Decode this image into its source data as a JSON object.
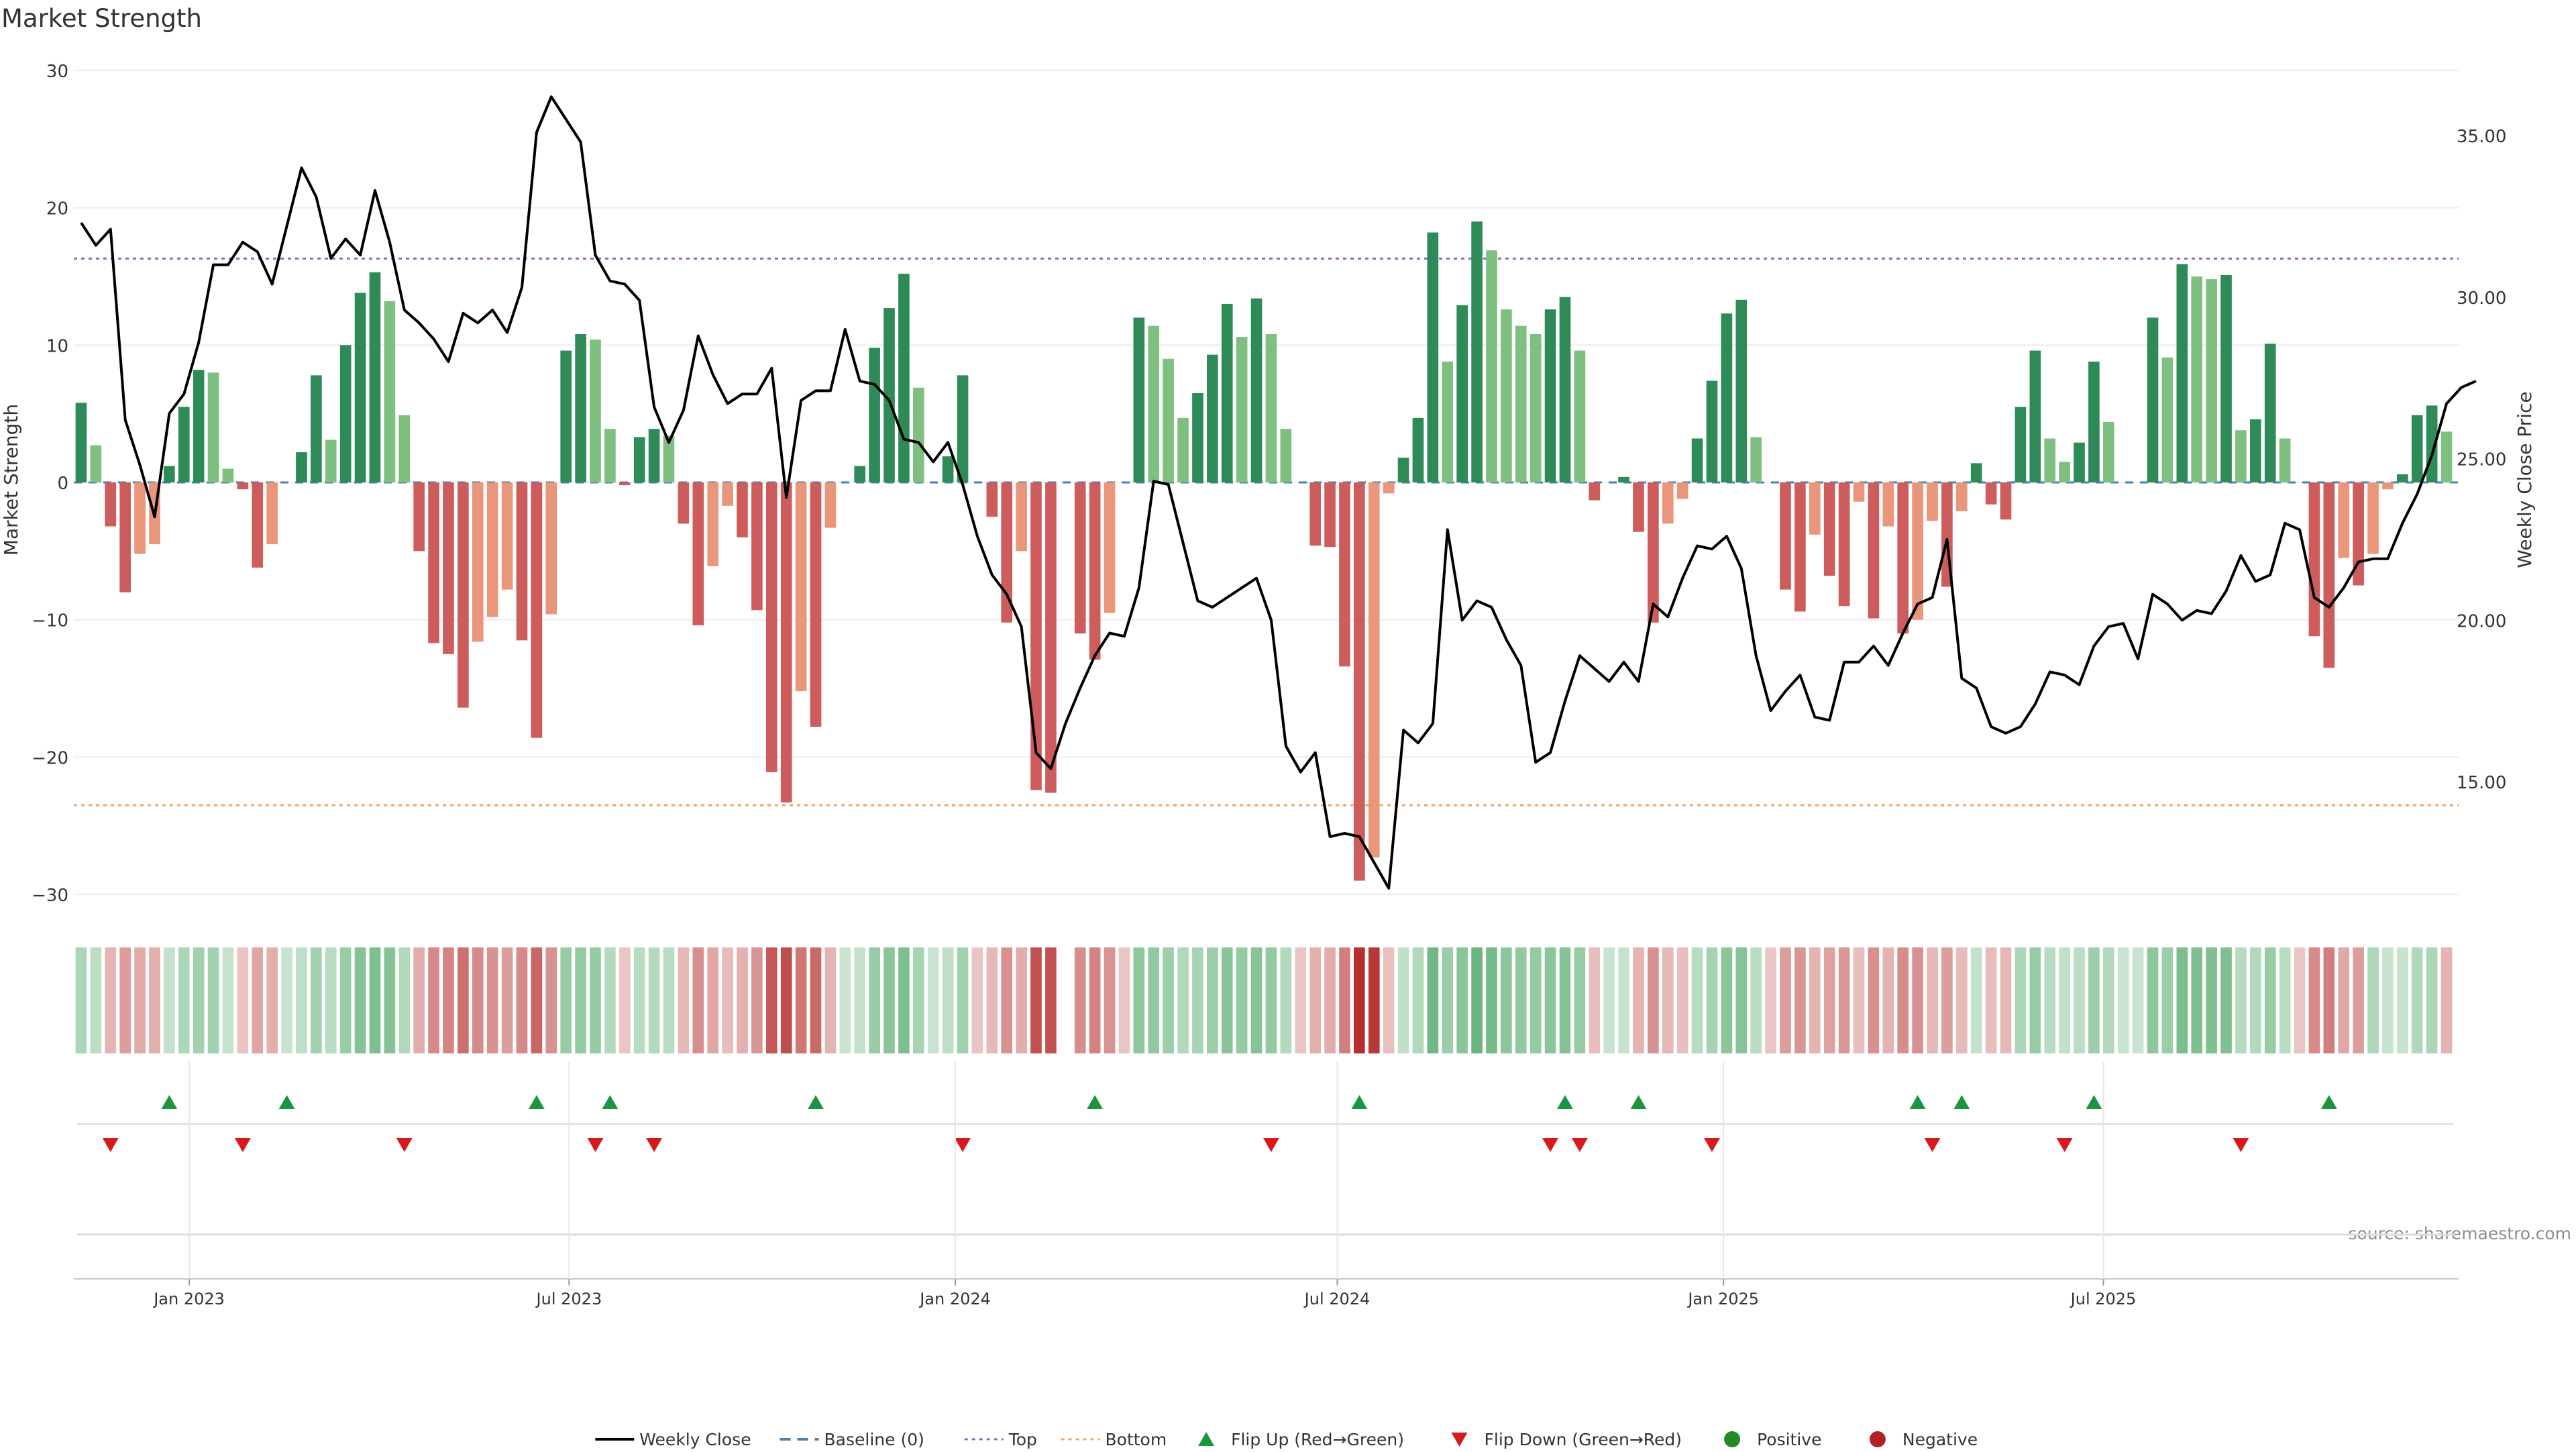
{
  "chart_data": {
    "type": "bar",
    "title": "Market Strength",
    "ylabel": "Market Strength",
    "y2label": "Weekly Close Price",
    "ylim": [
      -35,
      31
    ],
    "y2lim": [
      11.0,
      37.0
    ],
    "yticks": [
      30,
      20,
      10,
      0,
      -10,
      -20,
      -30
    ],
    "ytick_labels": [
      "30",
      "20",
      "10",
      "0",
      "−10",
      "−20",
      "−30"
    ],
    "y2ticks": [
      35,
      30,
      25,
      20,
      15
    ],
    "y2tick_labels": [
      "35.00",
      "30.00",
      "25.00",
      "20.00",
      "15.00"
    ],
    "x_start": "2022-11-07",
    "x_ticks": [
      {
        "label": "Jan 2023",
        "date": "2023-01-01"
      },
      {
        "label": "Jul 2023",
        "date": "2023-07-01"
      },
      {
        "label": "Jan 2024",
        "date": "2024-01-01"
      },
      {
        "label": "Jul 2024",
        "date": "2024-07-01"
      },
      {
        "label": "Jan 2025",
        "date": "2025-01-01"
      },
      {
        "label": "Jul 2025",
        "date": "2025-07-01"
      }
    ],
    "top_line": 16.3,
    "bottom_line": -23.5,
    "grid": true,
    "legend_position": "bottom",
    "source": "source: sharemaestro.com",
    "strength": [
      5.8,
      2.7,
      -3.2,
      -8.0,
      -5.2,
      -4.5,
      1.2,
      5.5,
      8.2,
      8.0,
      1.0,
      -0.5,
      -6.2,
      -4.5,
      0.0,
      2.2,
      7.8,
      3.1,
      10.0,
      13.8,
      15.3,
      13.2,
      4.9,
      -5.0,
      -11.7,
      -12.5,
      -16.4,
      -11.6,
      -9.8,
      -7.8,
      -11.5,
      -18.6,
      -9.6,
      9.6,
      10.8,
      10.4,
      3.9,
      -0.2,
      3.3,
      3.9,
      3.4,
      -3.0,
      -10.4,
      -6.1,
      -1.7,
      -4.0,
      -9.3,
      -21.1,
      -23.3,
      -15.2,
      -17.8,
      -3.3,
      0.0,
      1.2,
      9.8,
      12.7,
      15.2,
      6.9,
      0.0,
      1.9,
      7.8,
      0.0,
      -2.5,
      -10.2,
      -5.0,
      -22.4,
      -22.6,
      0.0,
      -11.0,
      -12.9,
      -9.5,
      0.0,
      12.0,
      11.4,
      9.0,
      4.7,
      6.5,
      9.3,
      13.0,
      10.6,
      13.4,
      10.8,
      3.9,
      0.0,
      -4.6,
      -4.7,
      -13.4,
      -29.0,
      -27.3,
      -0.8,
      1.8,
      4.7,
      18.2,
      8.8,
      12.9,
      19.0,
      16.9,
      12.6,
      11.4,
      10.8,
      12.6,
      13.5,
      9.6,
      -1.3,
      0.0,
      0.4,
      -3.6,
      -10.2,
      -3.0,
      -1.2,
      3.2,
      7.4,
      12.3,
      13.3,
      3.3,
      0.0,
      -7.8,
      -9.4,
      -3.8,
      -6.8,
      -9.0,
      -1.4,
      -9.9,
      -3.2,
      -11.0,
      -10.0,
      -2.8,
      -7.6,
      -2.1,
      1.4,
      -1.6,
      -2.7,
      5.5,
      9.6,
      3.2,
      1.5,
      2.9,
      8.8,
      4.4,
      0.0,
      0.0,
      12.0,
      9.1,
      15.9,
      15.0,
      14.8,
      15.1,
      3.8,
      4.6,
      10.1,
      3.2,
      0.0,
      -11.2,
      -13.5,
      -5.5,
      -7.5,
      -5.2,
      -0.5,
      0.6,
      4.9,
      5.6,
      3.7
    ],
    "price": [
      32.3,
      31.6,
      32.1,
      26.2,
      24.8,
      23.2,
      26.4,
      27.0,
      28.6,
      31.0,
      31.0,
      31.7,
      31.4,
      30.4,
      32.2,
      34.0,
      33.1,
      31.2,
      31.8,
      31.3,
      33.3,
      31.7,
      29.6,
      29.2,
      28.7,
      28.0,
      29.5,
      29.2,
      29.6,
      28.9,
      30.3,
      35.1,
      36.2,
      35.5,
      34.8,
      31.3,
      30.5,
      30.4,
      29.9,
      26.6,
      25.5,
      26.5,
      28.8,
      27.6,
      26.7,
      27.0,
      27.0,
      27.8,
      23.8,
      26.8,
      27.1,
      27.1,
      29.0,
      27.4,
      27.3,
      26.8,
      25.6,
      25.5,
      24.9,
      25.5,
      24.2,
      22.6,
      21.4,
      20.8,
      19.8,
      15.9,
      15.4,
      16.8,
      17.9,
      18.9,
      19.6,
      19.5,
      21.0,
      24.3,
      24.2,
      22.4,
      20.6,
      20.4,
      20.7,
      21.0,
      21.3,
      20.0,
      16.1,
      15.3,
      15.9,
      13.3,
      13.4,
      13.3,
      12.5,
      11.7,
      16.6,
      16.2,
      16.8,
      22.8,
      20.0,
      20.6,
      20.4,
      19.4,
      18.6,
      15.6,
      15.9,
      17.5,
      18.9,
      18.5,
      18.1,
      18.7,
      18.1,
      20.5,
      20.1,
      21.3,
      22.3,
      22.2,
      22.6,
      21.6,
      18.9,
      17.2,
      17.8,
      18.3,
      17.0,
      16.9,
      18.7,
      18.7,
      19.2,
      18.6,
      19.6,
      20.5,
      20.7,
      22.5,
      18.2,
      17.9,
      16.7,
      16.5,
      16.7,
      17.4,
      18.4,
      18.3,
      18.0,
      19.2,
      19.8,
      19.9,
      18.8,
      20.8,
      20.5,
      20.0,
      20.3,
      20.2,
      20.9,
      22.0,
      21.2,
      21.4,
      23.0,
      22.8,
      20.7,
      20.4,
      21.0,
      21.8,
      21.9,
      21.9,
      23.0,
      23.9,
      25.1,
      26.7,
      27.2,
      27.4
    ],
    "state": [
      1,
      1,
      -1,
      -1,
      -1,
      -1,
      1,
      1,
      1,
      1,
      1,
      -1,
      -1,
      -1,
      1,
      1,
      1,
      1,
      1,
      1,
      1,
      1,
      1,
      -1,
      -1,
      -1,
      -1,
      -1,
      -1,
      -1,
      -1,
      -1,
      -1,
      1,
      1,
      1,
      1,
      -1,
      1,
      1,
      1,
      -1,
      -1,
      -1,
      -1,
      -1,
      -1,
      -1,
      -1,
      -1,
      -1,
      -1,
      1,
      1,
      1,
      1,
      1,
      1,
      1,
      1,
      1,
      -1,
      -1,
      -1,
      -1,
      -1,
      -1,
      0,
      -1,
      -1,
      -1,
      -1,
      1,
      1,
      1,
      1,
      1,
      1,
      1,
      1,
      1,
      1,
      1,
      -1,
      -1,
      -1,
      -1,
      -1,
      -1,
      -1,
      1,
      1,
      1,
      1,
      1,
      1,
      1,
      1,
      1,
      1,
      1,
      1,
      1,
      -1,
      1,
      1,
      -1,
      -1,
      -1,
      -1,
      1,
      1,
      1,
      1,
      1,
      -1,
      -1,
      -1,
      -1,
      -1,
      -1,
      -1,
      -1,
      -1,
      -1,
      -1,
      -1,
      -1,
      -1,
      1,
      -1,
      -1,
      1,
      1,
      1,
      1,
      1,
      1,
      1,
      1,
      1,
      1,
      1,
      1,
      1,
      1,
      1,
      1,
      1,
      1,
      1,
      -1,
      -1,
      -1,
      -1,
      -1,
      1,
      1,
      1,
      1,
      1
    ],
    "flip_up": [
      6,
      14,
      31,
      36,
      50,
      69,
      87,
      101,
      106,
      125,
      128,
      137,
      153
    ],
    "flip_down": [
      2,
      11,
      22,
      35,
      39,
      60,
      81,
      100,
      102,
      111,
      126,
      135,
      147
    ],
    "colors": {
      "pos_strong": "#2e8b57",
      "pos_light": "#7fbf7f",
      "neg_strong": "#cd5c5c",
      "neg_light": "#e9967a",
      "price_line": "#000000",
      "top_line": "#9467bd",
      "bottom_line": "#f4a460",
      "baseline": "#4682b4",
      "flip_up": "#1a9641",
      "flip_down": "#d7191c",
      "positive_dot": "#228b22",
      "negative_dot": "#b22222"
    },
    "legend": [
      {
        "label": "Weekly Close",
        "kind": "line",
        "color": "#000000"
      },
      {
        "label": "Baseline (0)",
        "kind": "dash",
        "color": "#4682b4"
      },
      {
        "label": "Top",
        "kind": "dot",
        "color": "#9467bd"
      },
      {
        "label": "Bottom",
        "kind": "dot",
        "color": "#f4a460"
      },
      {
        "label": "Flip Up (Red→Green)",
        "kind": "tri-up",
        "color": "#1a9641"
      },
      {
        "label": "Flip Down (Green→Red)",
        "kind": "tri-down",
        "color": "#d7191c"
      },
      {
        "label": "Positive",
        "kind": "circle",
        "color": "#228b22"
      },
      {
        "label": "Negative",
        "kind": "circle",
        "color": "#b22222"
      }
    ]
  }
}
